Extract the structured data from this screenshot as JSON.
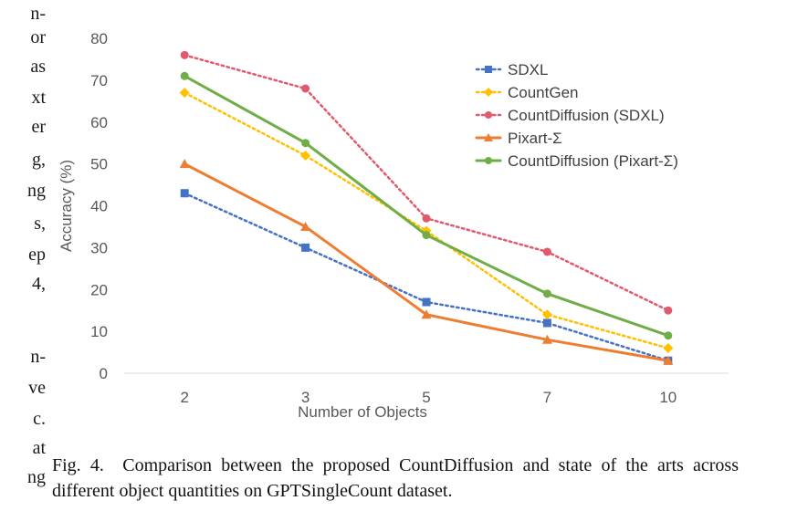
{
  "left_fragments": [
    "n-",
    "or",
    "as",
    "xt",
    "er",
    "g,",
    "ng",
    "s,",
    "ep",
    "4,",
    "n-",
    "ve",
    "c.",
    "at",
    "ng"
  ],
  "caption": {
    "label": "Fig. 4.",
    "text": "Comparison between the proposed CountDiffusion and state of the arts across different object quantities on GPTSingleCount dataset."
  },
  "chart_data": {
    "type": "line",
    "title": "",
    "xlabel": "Number of Objects",
    "ylabel": "Accuracy (%)",
    "categories": [
      "2",
      "3",
      "5",
      "7",
      "10"
    ],
    "ylim": [
      0,
      80
    ],
    "yticks": [
      0,
      10,
      20,
      30,
      40,
      50,
      60,
      70,
      80
    ],
    "grid": false,
    "legend_position": "top-right",
    "series": [
      {
        "name": "SDXL",
        "values": [
          43,
          30,
          17,
          12,
          3
        ],
        "color": "#4472c4",
        "style": "dotted",
        "marker": "square"
      },
      {
        "name": "CountGen",
        "values": [
          67,
          52,
          34,
          14,
          6
        ],
        "color": "#ffc000",
        "style": "dotted",
        "marker": "diamond"
      },
      {
        "name": "CountDiffusion (SDXL)",
        "values": [
          76,
          68,
          37,
          29,
          15
        ],
        "color": "#e05a6e",
        "style": "dotted",
        "marker": "circle"
      },
      {
        "name": "Pixart-Σ",
        "values": [
          50,
          35,
          14,
          8,
          3
        ],
        "color": "#ed7d31",
        "style": "solid",
        "marker": "triangle"
      },
      {
        "name": "CountDiffusion (Pixart-Σ)",
        "values": [
          71,
          55,
          33,
          19,
          9
        ],
        "color": "#70ad47",
        "style": "solid",
        "marker": "circle"
      }
    ]
  }
}
